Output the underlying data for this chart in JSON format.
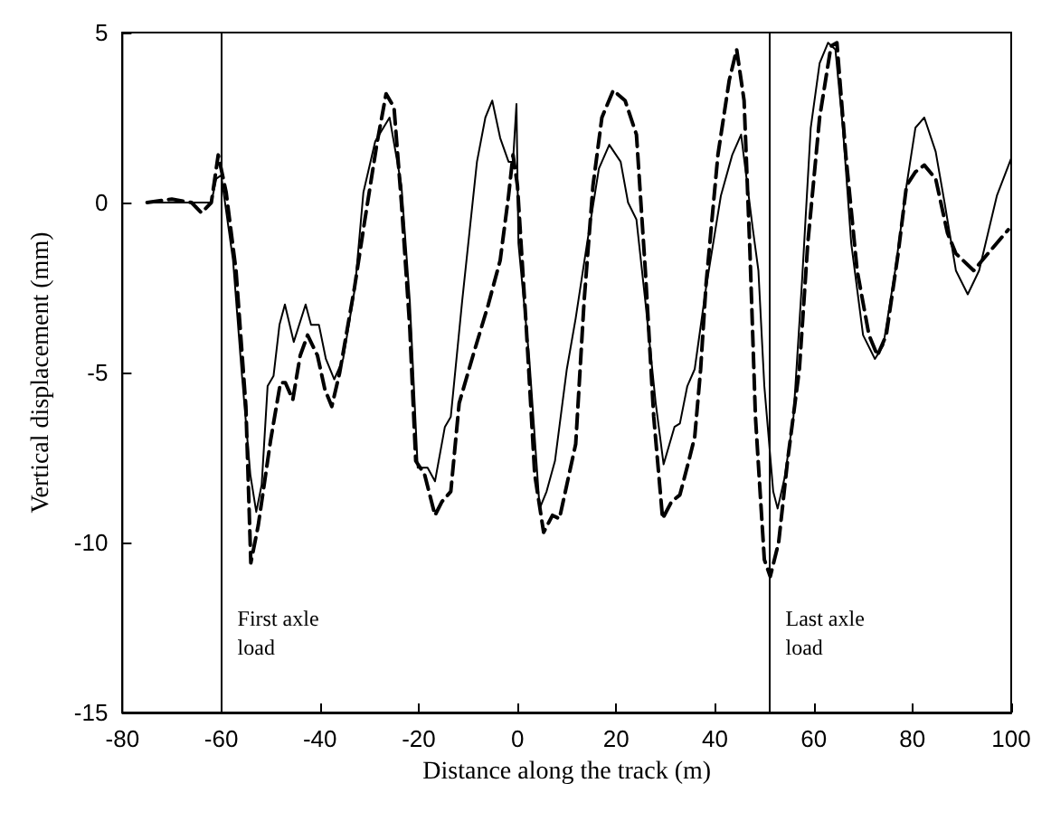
{
  "chart_data": {
    "type": "line",
    "xlabel": "Distance along the track (m)",
    "ylabel": "Vertical displacement (mm)",
    "xlim": [
      -80,
      100
    ],
    "xticks": [
      -80,
      -60,
      -40,
      -20,
      0,
      20,
      40,
      60,
      80,
      100
    ],
    "ylim": [
      -15,
      5
    ],
    "yticks": [
      -15,
      -10,
      -5,
      0,
      5
    ],
    "grid": false,
    "marker": "none",
    "series": [
      {
        "color": "#000000",
        "line_style": "solid",
        "x": [
          -75,
          -65,
          -62,
          -61,
          -60,
          -57.6,
          -55.9,
          -54.1,
          -52.9,
          -51.8,
          -50.6,
          -49.4,
          -48.2,
          -47.1,
          -45.3,
          -42.9,
          -41.8,
          -40.2,
          -38.8,
          -37.1,
          -35.3,
          -32.9,
          -31.2,
          -28.8,
          -25.9,
          -23.5,
          -21.8,
          -20.2,
          -18.2,
          -16.7,
          -14.7,
          -13.5,
          -11.2,
          -8.2,
          -6.5,
          -5.1,
          -3.5,
          -1.8,
          -0.9,
          -0.2,
          0.2,
          2.4,
          4.5,
          5.9,
          7.6,
          10,
          11.8,
          14.1,
          16.5,
          18.6,
          20.9,
          22.4,
          24.1,
          25.9,
          28,
          29.6,
          31.8,
          32.9,
          34.4,
          35.9,
          38.2,
          41.2,
          43.5,
          45.3,
          47.6,
          48.8,
          50,
          51.8,
          52.7,
          54.1,
          55.9,
          57.6,
          59.4,
          61.2,
          62.9,
          64.4,
          65.9,
          67.6,
          70,
          72.4,
          74.1,
          76.5,
          78.8,
          80.6,
          82.4,
          84.7,
          86.5,
          88.8,
          91.2,
          93.5,
          97.1,
          100
        ],
        "values": [
          0,
          0,
          0,
          0.7,
          0.8,
          -1.7,
          -4.9,
          -8,
          -9.1,
          -8.3,
          -5.4,
          -5.1,
          -3.6,
          -3,
          -4.1,
          -3,
          -3.6,
          -3.6,
          -4.6,
          -5.2,
          -4.6,
          -2.5,
          0.3,
          1.8,
          2.5,
          0.5,
          -2.9,
          -7.8,
          -7.8,
          -8.2,
          -6.6,
          -6.3,
          -2.9,
          1.2,
          2.5,
          3,
          1.9,
          1.2,
          1.2,
          2.9,
          -1.2,
          -4.6,
          -9,
          -8.5,
          -7.6,
          -4.9,
          -3.4,
          -1.2,
          1,
          1.7,
          1.2,
          0,
          -0.5,
          -2.9,
          -5.9,
          -7.7,
          -6.6,
          -6.5,
          -5.4,
          -4.9,
          -2.5,
          0.2,
          1.4,
          2,
          -0.7,
          -2,
          -5.4,
          -8.5,
          -9,
          -8.1,
          -6.3,
          -2.4,
          2.2,
          4.1,
          4.7,
          4.5,
          2.2,
          -1.2,
          -3.9,
          -4.6,
          -4.2,
          -2,
          0.5,
          2.2,
          2.5,
          1.5,
          0,
          -2,
          -2.7,
          -2,
          0.2,
          1.3
        ]
      },
      {
        "color": "#000000",
        "line_style": "dashed",
        "x": [
          -75,
          -70,
          -66,
          -64,
          -62,
          -60.6,
          -59,
          -57,
          -55,
          -54,
          -52.5,
          -50,
          -48,
          -47,
          -45.5,
          -44,
          -42.5,
          -40.5,
          -39,
          -37.6,
          -36,
          -33,
          -31,
          -28.5,
          -26.6,
          -25,
          -23.5,
          -21.8,
          -20.6,
          -18.8,
          -16.7,
          -15.3,
          -13.5,
          -11.8,
          -8.8,
          -5.9,
          -3.5,
          -1.8,
          -0.9,
          0,
          1.8,
          3.5,
          5.3,
          7.1,
          8.5,
          10,
          11.8,
          13.5,
          15.3,
          17.1,
          19.4,
          21.8,
          24.1,
          25.9,
          27.6,
          29.4,
          31.2,
          32.9,
          34.7,
          35.9,
          37.1,
          38.2,
          40.6,
          42.9,
          44.4,
          45.9,
          47.1,
          48.2,
          50,
          51.2,
          52.9,
          54.7,
          57.1,
          58.8,
          61.2,
          63.5,
          64.7,
          66.5,
          68.8,
          71.2,
          72.9,
          74.7,
          77.1,
          78.8,
          80.6,
          82.4,
          84.7,
          87.1,
          88.8,
          92.4,
          95.3,
          99.4
        ],
        "values": [
          0,
          0.1,
          0,
          -0.3,
          0,
          1.4,
          0.3,
          -2,
          -6,
          -10.6,
          -9.5,
          -7,
          -5.3,
          -5.3,
          -5.8,
          -4.5,
          -3.9,
          -4.5,
          -5.5,
          -6,
          -5,
          -2.5,
          -0.6,
          1.7,
          3.2,
          2.8,
          0,
          -3.7,
          -7.6,
          -8,
          -9.2,
          -8.8,
          -8.5,
          -5.9,
          -4.4,
          -3,
          -1.7,
          0.2,
          1.4,
          0.5,
          -3.7,
          -8,
          -9.7,
          -9.2,
          -9.3,
          -8.3,
          -7.1,
          -2.9,
          0.5,
          2.5,
          3.3,
          3,
          2,
          -2,
          -6.3,
          -9.3,
          -8.8,
          -8.6,
          -7.6,
          -6.9,
          -4.9,
          -2.4,
          1.4,
          3.6,
          4.5,
          3,
          -1.5,
          -6.3,
          -10.5,
          -11,
          -10,
          -7.6,
          -4.9,
          -1.2,
          2.5,
          4.6,
          4.7,
          1.4,
          -2,
          -3.9,
          -4.5,
          -3.9,
          -1.5,
          0.5,
          0.9,
          1.1,
          0.7,
          -0.9,
          -1.5,
          -2,
          -1.5,
          -0.8
        ]
      }
    ],
    "ref_lines": [
      {
        "axis": "x",
        "value": -60,
        "label": "First axle load",
        "color": "#000000"
      },
      {
        "axis": "x",
        "value": 51,
        "label": "Last axle load",
        "color": "#000000"
      }
    ]
  }
}
